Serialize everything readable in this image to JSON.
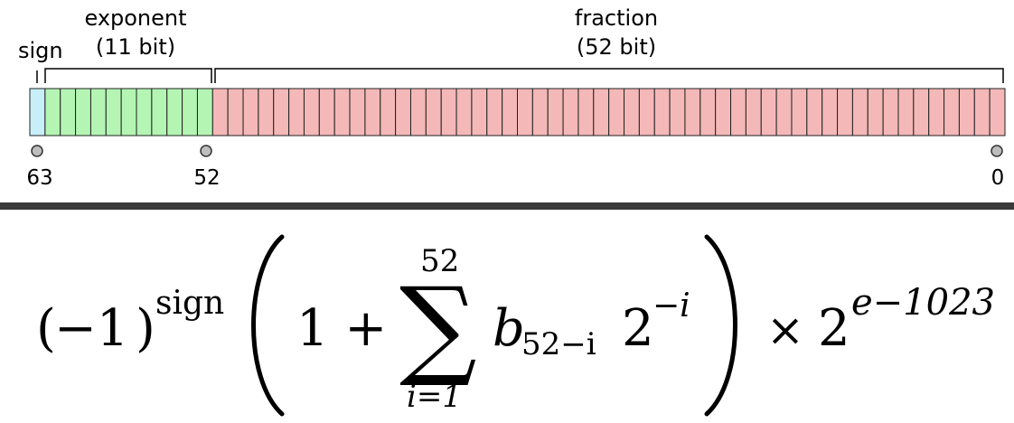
{
  "labels": {
    "sign": "sign",
    "exponent": "exponent",
    "exponent_bits": "(11 bit)",
    "fraction": "fraction",
    "fraction_bits": "(52 bit)"
  },
  "bit_counts": {
    "sign": 1,
    "exponent": 11,
    "fraction": 52
  },
  "markers": [
    "63",
    "52",
    "0"
  ],
  "colors": {
    "sign": "#c8eef8",
    "exponent": "#b4f5b4",
    "fraction": "#f4b8b8",
    "divider": "#3a3a3a"
  },
  "formula": {
    "open_paren_left": "(",
    "minus_one": "−1",
    "close_paren_left": ")",
    "sign_exponent": "sign",
    "one_plus": "1 +",
    "sum_symbol": "∑",
    "sum_upper": "52",
    "sum_lower": "i=1",
    "term_b": "b",
    "term_b_sub": "52−i",
    "term_two": "2",
    "term_two_exp": "−i",
    "times": "×",
    "base_two": "2",
    "final_exp": "e−1023"
  }
}
